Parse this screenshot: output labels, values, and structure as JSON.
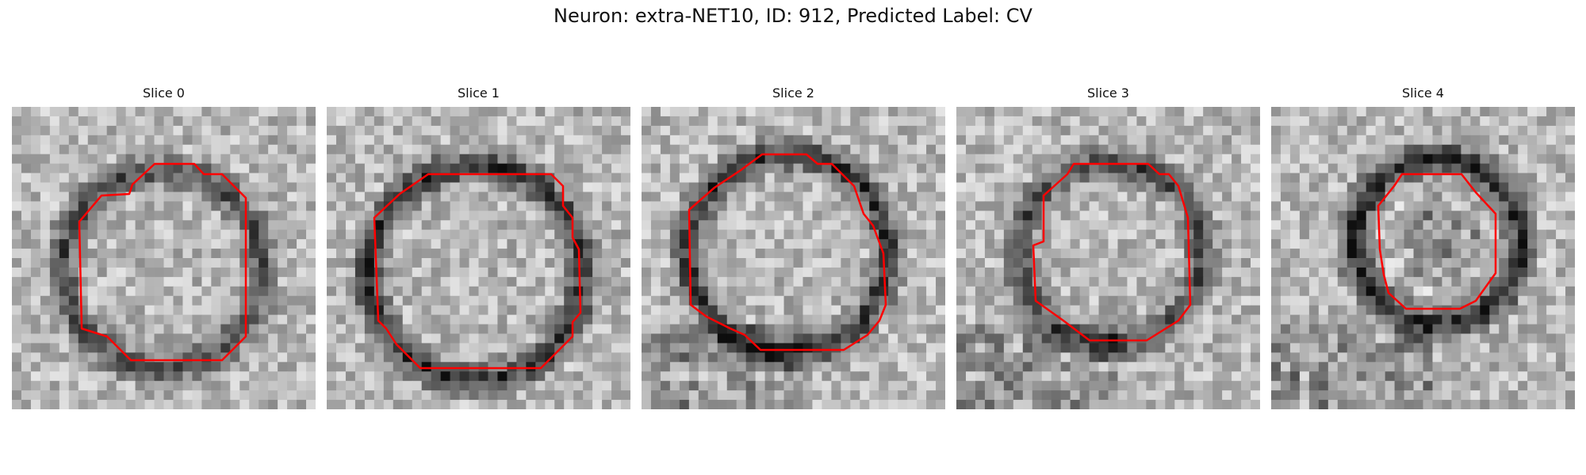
{
  "figure": {
    "title": "Neuron: extra-NET10, ID: 912, Predicted Label: CV"
  },
  "colors": {
    "contour": "#ff0000",
    "background": "#ffffff"
  },
  "slices": [
    {
      "label": "Slice 0"
    },
    {
      "label": "Slice 1"
    },
    {
      "label": "Slice 2"
    },
    {
      "label": "Slice 3"
    },
    {
      "label": "Slice 4"
    }
  ]
}
